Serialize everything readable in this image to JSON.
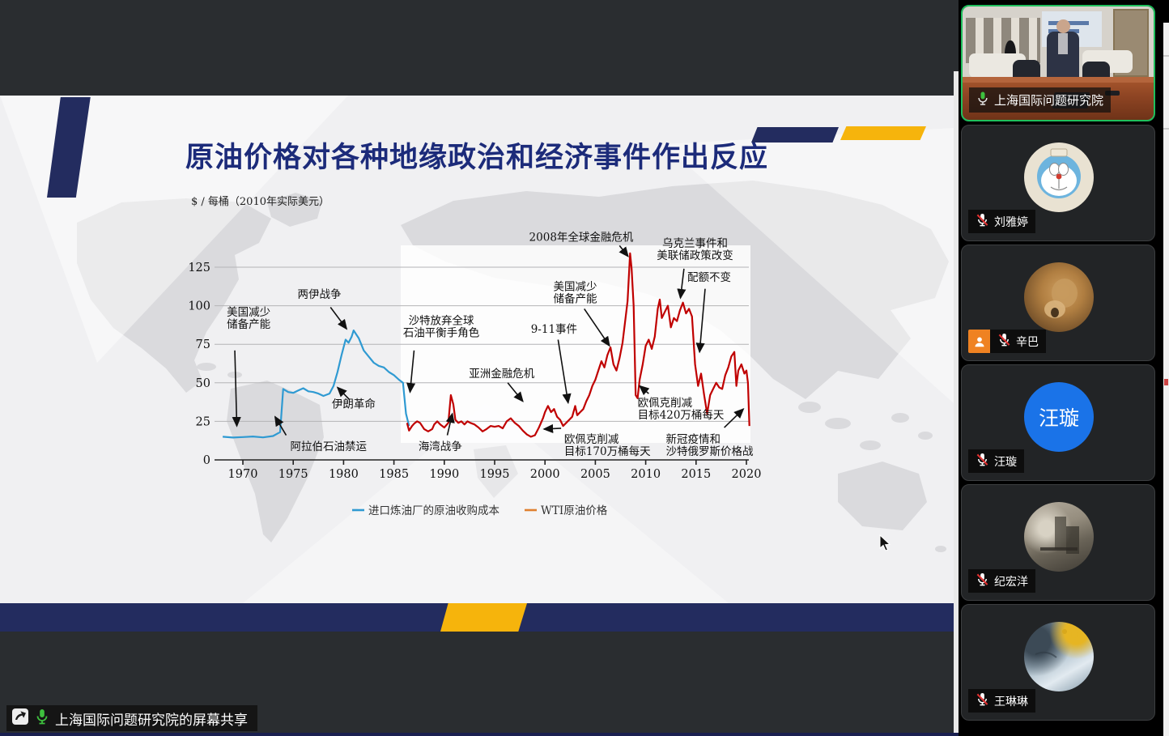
{
  "slide": {
    "title": "原油价格对各种地缘政治和经济事件作出反应",
    "colors": {
      "navy": "#232c5f",
      "gold": "#f6b40c",
      "title_color": "#1c2b7a"
    }
  },
  "chart_data": {
    "type": "line",
    "ylabel": "$ / 每桶（2010年实际美元）",
    "xlim": [
      1968,
      2021
    ],
    "ylim": [
      0,
      150
    ],
    "yticks": [
      0,
      25,
      50,
      75,
      100,
      125
    ],
    "xticks": [
      1970,
      1975,
      1980,
      1985,
      1990,
      1995,
      2000,
      2005,
      2010,
      2015,
      2020
    ],
    "grid": true,
    "legend_position": "bottom",
    "series": [
      {
        "name": "进口炼油厂的原油收购成本",
        "color": "#2f9ad2",
        "points": [
          [
            1968,
            15
          ],
          [
            1969,
            14.5
          ],
          [
            1970,
            14.8
          ],
          [
            1971,
            15.2
          ],
          [
            1972,
            14.6
          ],
          [
            1973,
            15.5
          ],
          [
            1973.7,
            18
          ],
          [
            1974,
            46
          ],
          [
            1974.5,
            44
          ],
          [
            1975,
            43.5
          ],
          [
            1975.5,
            45
          ],
          [
            1976,
            46.5
          ],
          [
            1976.5,
            44.5
          ],
          [
            1977,
            44
          ],
          [
            1977.5,
            43
          ],
          [
            1978,
            41.5
          ],
          [
            1978.6,
            43
          ],
          [
            1979,
            48
          ],
          [
            1979.4,
            57
          ],
          [
            1979.8,
            68
          ],
          [
            1980.2,
            78
          ],
          [
            1980.5,
            76
          ],
          [
            1980.8,
            80
          ],
          [
            1981,
            84
          ],
          [
            1981.5,
            79
          ],
          [
            1982,
            71
          ],
          [
            1982.5,
            67
          ],
          [
            1983,
            63
          ],
          [
            1983.5,
            61
          ],
          [
            1984,
            60
          ],
          [
            1984.5,
            57
          ],
          [
            1985,
            55
          ],
          [
            1985.5,
            52
          ],
          [
            1985.9,
            50
          ],
          [
            1986.2,
            30
          ],
          [
            1986.5,
            22
          ]
        ]
      },
      {
        "name": "WTI原油价格",
        "color": "#c00000",
        "legend_color": "#e08030",
        "points": [
          [
            1986.3,
            24
          ],
          [
            1986.5,
            19
          ],
          [
            1986.8,
            22
          ],
          [
            1987,
            23.5
          ],
          [
            1987.3,
            25
          ],
          [
            1987.6,
            24
          ],
          [
            1988,
            20
          ],
          [
            1988.4,
            18.5
          ],
          [
            1988.8,
            20
          ],
          [
            1989,
            23
          ],
          [
            1989.3,
            25
          ],
          [
            1989.6,
            23
          ],
          [
            1990,
            21
          ],
          [
            1990.4,
            24
          ],
          [
            1990.65,
            42
          ],
          [
            1990.9,
            36
          ],
          [
            1991.1,
            26
          ],
          [
            1991.4,
            24
          ],
          [
            1991.7,
            25
          ],
          [
            1992,
            23
          ],
          [
            1992.3,
            25
          ],
          [
            1992.6,
            24
          ],
          [
            1993,
            23
          ],
          [
            1993.4,
            21
          ],
          [
            1993.8,
            18.5
          ],
          [
            1994.2,
            20
          ],
          [
            1994.6,
            22
          ],
          [
            1995,
            21.5
          ],
          [
            1995.4,
            22
          ],
          [
            1995.8,
            20.5
          ],
          [
            1996.2,
            25
          ],
          [
            1996.6,
            27
          ],
          [
            1997,
            24
          ],
          [
            1997.4,
            22
          ],
          [
            1997.8,
            19
          ],
          [
            1998.2,
            16.5
          ],
          [
            1998.6,
            15
          ],
          [
            1999,
            16
          ],
          [
            1999.4,
            21
          ],
          [
            1999.8,
            27
          ],
          [
            2000,
            31
          ],
          [
            2000.3,
            35
          ],
          [
            2000.6,
            31
          ],
          [
            2000.9,
            33
          ],
          [
            2001.2,
            28
          ],
          [
            2001.5,
            26
          ],
          [
            2001.8,
            22
          ],
          [
            2002.1,
            24
          ],
          [
            2002.4,
            26
          ],
          [
            2002.7,
            28
          ],
          [
            2003,
            35
          ],
          [
            2003.2,
            29
          ],
          [
            2003.5,
            31
          ],
          [
            2003.8,
            33
          ],
          [
            2004.1,
            38
          ],
          [
            2004.4,
            42
          ],
          [
            2004.7,
            48
          ],
          [
            2005,
            52
          ],
          [
            2005.3,
            58
          ],
          [
            2005.6,
            64
          ],
          [
            2005.9,
            60
          ],
          [
            2006.2,
            68
          ],
          [
            2006.5,
            73
          ],
          [
            2006.8,
            62
          ],
          [
            2007.1,
            58
          ],
          [
            2007.4,
            66
          ],
          [
            2007.7,
            76
          ],
          [
            2008,
            92
          ],
          [
            2008.2,
            103
          ],
          [
            2008.45,
            134
          ],
          [
            2008.6,
            124
          ],
          [
            2008.8,
            100
          ],
          [
            2009,
            42
          ],
          [
            2009.2,
            40
          ],
          [
            2009.4,
            52
          ],
          [
            2009.7,
            62
          ],
          [
            2010,
            74
          ],
          [
            2010.3,
            78
          ],
          [
            2010.6,
            72
          ],
          [
            2010.9,
            80
          ],
          [
            2011.2,
            98
          ],
          [
            2011.4,
            104
          ],
          [
            2011.6,
            92
          ],
          [
            2011.9,
            96
          ],
          [
            2012.2,
            100
          ],
          [
            2012.5,
            86
          ],
          [
            2012.8,
            92
          ],
          [
            2013.1,
            90
          ],
          [
            2013.4,
            97
          ],
          [
            2013.7,
            102
          ],
          [
            2014,
            95
          ],
          [
            2014.3,
            98
          ],
          [
            2014.6,
            93
          ],
          [
            2014.9,
            62
          ],
          [
            2015.2,
            48
          ],
          [
            2015.5,
            56
          ],
          [
            2015.8,
            42
          ],
          [
            2016.1,
            30
          ],
          [
            2016.4,
            42
          ],
          [
            2016.7,
            46
          ],
          [
            2017,
            50
          ],
          [
            2017.3,
            47
          ],
          [
            2017.6,
            46
          ],
          [
            2017.9,
            55
          ],
          [
            2018.2,
            60
          ],
          [
            2018.5,
            67
          ],
          [
            2018.8,
            70
          ],
          [
            2019,
            48
          ],
          [
            2019.2,
            58
          ],
          [
            2019.5,
            62
          ],
          [
            2019.8,
            56
          ],
          [
            2020,
            58
          ],
          [
            2020.15,
            50
          ],
          [
            2020.3,
            22
          ]
        ]
      }
    ],
    "annotations": [
      {
        "lines": [
          "美国减少",
          "储备产能"
        ],
        "anchor": "start",
        "label": [
          1968.4,
          93.5
        ],
        "arrow": {
          "from": [
            1969.2,
            71
          ],
          "to": [
            1969.4,
            22
          ]
        }
      },
      {
        "lines": [
          "两伊战争"
        ],
        "anchor": "middle",
        "label": [
          1977.6,
          105
        ],
        "arrow": {
          "from": [
            1978.7,
            99
          ],
          "to": [
            1980.3,
            85
          ]
        }
      },
      {
        "lines": [
          "伊朗革命"
        ],
        "anchor": "middle",
        "label": [
          1981,
          34
        ],
        "arrow": {
          "from": [
            1980.6,
            39
          ],
          "to": [
            1979.4,
            47
          ]
        }
      },
      {
        "lines": [
          "阿拉伯石油禁运"
        ],
        "anchor": "middle",
        "label": [
          1978.5,
          6.3
        ],
        "arrow": {
          "from": [
            1974.3,
            16
          ],
          "to": [
            1973.2,
            28
          ]
        }
      },
      {
        "lines": [
          "沙特放弃全球",
          "石油平衡手角色"
        ],
        "anchor": "middle",
        "label": [
          1989.7,
          88
        ],
        "arrow": {
          "from": [
            1987.0,
            71
          ],
          "to": [
            1986.6,
            44
          ]
        }
      },
      {
        "lines": [
          "海湾战争"
        ],
        "anchor": "middle",
        "label": [
          1989.6,
          6.3
        ],
        "arrow": {
          "from": [
            1990.3,
            16
          ],
          "to": [
            1990.8,
            30
          ]
        }
      },
      {
        "lines": [
          "亚洲金融危机"
        ],
        "anchor": "middle",
        "label": [
          1995.7,
          53.6
        ],
        "arrow": {
          "from": [
            1996.3,
            50
          ],
          "to": [
            1997.8,
            38
          ]
        }
      },
      {
        "lines": [
          "9-11事件"
        ],
        "anchor": "middle",
        "label": [
          2000.9,
          82.5
        ],
        "arrow": {
          "from": [
            2001.3,
            78
          ],
          "to": [
            2002.3,
            37
          ]
        }
      },
      {
        "lines": [
          "美国减少",
          "储备产能"
        ],
        "anchor": "middle",
        "label": [
          2003,
          110
        ],
        "arrow": {
          "from": [
            2003.9,
            98
          ],
          "to": [
            2006.4,
            74
          ]
        }
      },
      {
        "lines": [
          "2008年全球金融危机"
        ],
        "anchor": "middle",
        "label": [
          2003.6,
          142
        ],
        "arrow": {
          "from": [
            2007.4,
            139
          ],
          "to": [
            2008.25,
            132
          ]
        }
      },
      {
        "lines": [
          "乌克兰事件和",
          "美联储政策改变"
        ],
        "anchor": "middle",
        "label": [
          2014.9,
          138
        ],
        "arrow": {
          "from": [
            2013.8,
            124
          ],
          "to": [
            2013.45,
            105
          ]
        }
      },
      {
        "lines": [
          "配额不变"
        ],
        "anchor": "middle",
        "label": [
          2016.3,
          116
        ],
        "arrow": {
          "from": [
            2015.9,
            111
          ],
          "to": [
            2015.35,
            70
          ]
        }
      },
      {
        "lines": [
          "欧佩克削减",
          "目标420万桶每天"
        ],
        "anchor": "start",
        "label": [
          2009.2,
          34.7
        ],
        "arrow": {
          "from": [
            2010.3,
            43
          ],
          "to": [
            2009.4,
            48
          ]
        }
      },
      {
        "lines": [
          "欧佩克削减",
          "目标170万桶每天"
        ],
        "anchor": "start",
        "label": [
          2001.9,
          11
        ],
        "arrow": {
          "from": [
            2001.6,
            20.5
          ],
          "to": [
            1999.9,
            20
          ]
        }
      },
      {
        "lines": [
          "新冠疫情和",
          "沙特俄罗斯价格战"
        ],
        "anchor": "start",
        "label": [
          2012.0,
          11
        ],
        "arrow": {
          "from": [
            2017.8,
            21
          ],
          "to": [
            2019.7,
            33
          ]
        }
      }
    ]
  },
  "share_banner": {
    "text": "上海国际问题研究院的屏幕共享"
  },
  "sidebar": {
    "participants": [
      {
        "name": "上海国际问题研究院",
        "mic": "on",
        "video": true,
        "active_speaker": true,
        "avatar_kind": "live-video"
      },
      {
        "name": "刘雅婷",
        "mic": "muted",
        "avatar_kind": "doraemon-cartoon-avatar"
      },
      {
        "name": "辛巴",
        "mic": "muted",
        "avatar_kind": "lion-photo-avatar",
        "badge": "participant-badge"
      },
      {
        "name": "汪璇",
        "mic": "muted",
        "avatar_kind": "name-text-avatar",
        "avatar_text": "汪璇",
        "avatar_color": "#1a73e8"
      },
      {
        "name": "纪宏洋",
        "mic": "muted",
        "avatar_kind": "painting-avatar"
      },
      {
        "name": "王琳琳",
        "mic": "muted",
        "avatar_kind": "landscape-painting-avatar"
      }
    ]
  },
  "ui_colors": {
    "active_speaker_green": "#1fbf5c",
    "badge_orange": "#ef8222",
    "mic_on_green": "#3ec13e",
    "muted_slash_red": "#e03131"
  }
}
